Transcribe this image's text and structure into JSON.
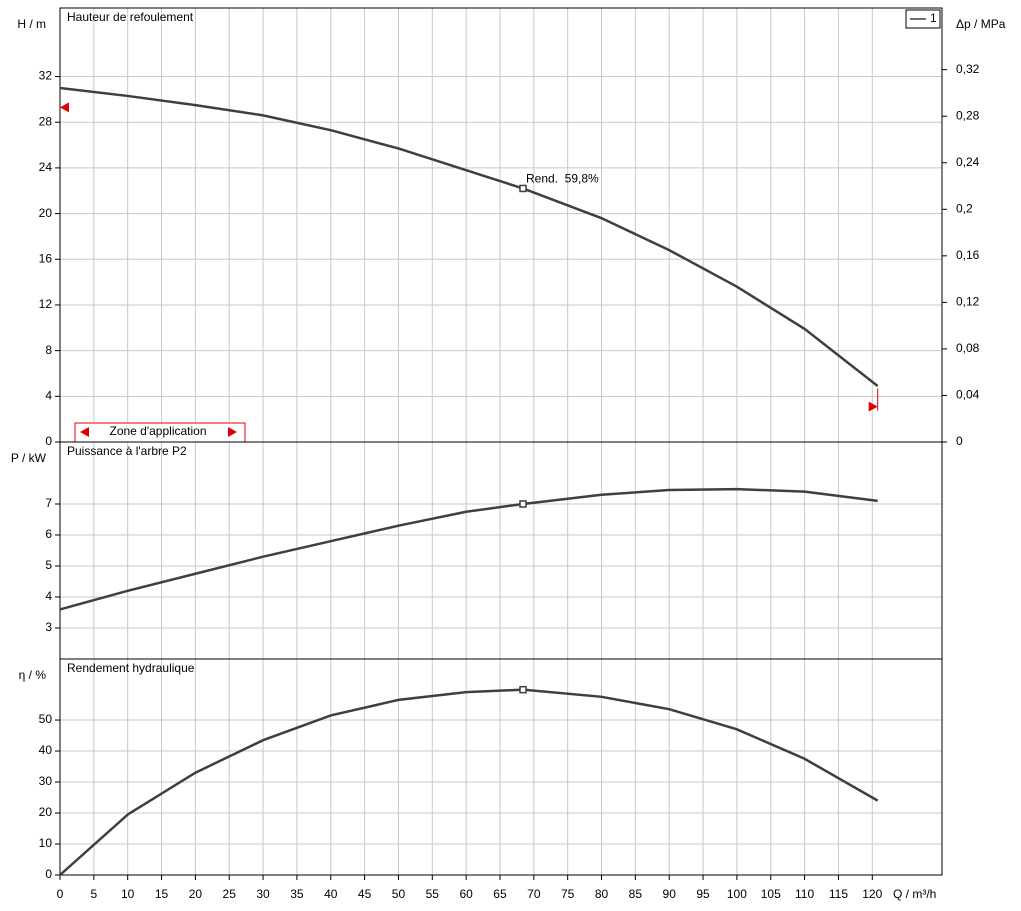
{
  "chart_data": [
    {
      "type": "line",
      "title": "Hauteur de refoulement",
      "ylabel": "H / m",
      "y2label": "Δp / MPa",
      "series": [
        {
          "name": "1",
          "color": "#3b3f48",
          "x": [
            0,
            10,
            20,
            30,
            40,
            50,
            60,
            68.4,
            80,
            90,
            100,
            110,
            120.8
          ],
          "values": [
            31.0,
            30.3,
            29.5,
            28.6,
            27.3,
            25.7,
            23.8,
            22.2,
            19.6,
            16.8,
            13.6,
            9.9,
            4.9
          ]
        }
      ],
      "operating_point": {
        "x": 68.4,
        "y": 22.2
      },
      "annotation": "Rend.  59,8%",
      "range_markers": {
        "color": "#e00000",
        "x": [
          0,
          120.8
        ],
        "y": [
          29.3,
          3.1
        ]
      },
      "zone_label": "Zone d'application",
      "ylim": [
        0,
        38
      ],
      "yticks": [
        0,
        4,
        8,
        12,
        16,
        20,
        24,
        28,
        32
      ],
      "y2lim": [
        0,
        0.373
      ],
      "y2ticks": [
        0,
        {
          "value": 0.04,
          "label": "0,04"
        },
        {
          "value": 0.08,
          "label": "0,08"
        },
        {
          "value": 0.12,
          "label": "0,12"
        },
        {
          "value": 0.16,
          "label": "0,16"
        },
        {
          "value": 0.2,
          "label": "0,2"
        },
        {
          "value": 0.24,
          "label": "0,24"
        },
        {
          "value": 0.28,
          "label": "0,28"
        },
        {
          "value": 0.32,
          "label": "0,32"
        }
      ],
      "grid": true
    },
    {
      "type": "line",
      "title": "Puissance à l'arbre P2",
      "ylabel": "P / kW",
      "series": [
        {
          "color": "#3b3f48",
          "x": [
            0,
            10,
            20,
            30,
            40,
            50,
            60,
            68.4,
            80,
            90,
            100,
            110,
            120.8
          ],
          "values": [
            3.6,
            4.2,
            4.75,
            5.3,
            5.8,
            6.3,
            6.75,
            7.0,
            7.3,
            7.45,
            7.48,
            7.4,
            7.1
          ]
        }
      ],
      "operating_point": {
        "x": 68.4,
        "y": 7.0
      },
      "ylim": [
        2,
        9
      ],
      "yticks": [
        3,
        4,
        5,
        6,
        7
      ],
      "grid": true
    },
    {
      "type": "line",
      "title": "Rendement hydraulique",
      "ylabel": "η / %",
      "xlabel": "Q / m³/h",
      "series": [
        {
          "color": "#3b3f48",
          "x": [
            0,
            10,
            20,
            30,
            40,
            50,
            60,
            68.4,
            80,
            90,
            100,
            110,
            120.8
          ],
          "values": [
            0,
            19.5,
            33,
            43.5,
            51.5,
            56.5,
            59,
            59.8,
            57.5,
            53.5,
            47,
            37.5,
            24
          ]
        }
      ],
      "operating_point": {
        "x": 68.4,
        "y": 59.8
      },
      "ylim": [
        0,
        69.7
      ],
      "yticks": [
        0,
        10,
        20,
        30,
        40,
        50
      ],
      "xlim": [
        0,
        130.3
      ],
      "xticks": [
        0,
        5,
        10,
        15,
        20,
        25,
        30,
        35,
        40,
        45,
        50,
        55,
        60,
        65,
        70,
        75,
        80,
        85,
        90,
        95,
        100,
        105,
        110,
        115,
        120
      ],
      "grid": true
    }
  ]
}
